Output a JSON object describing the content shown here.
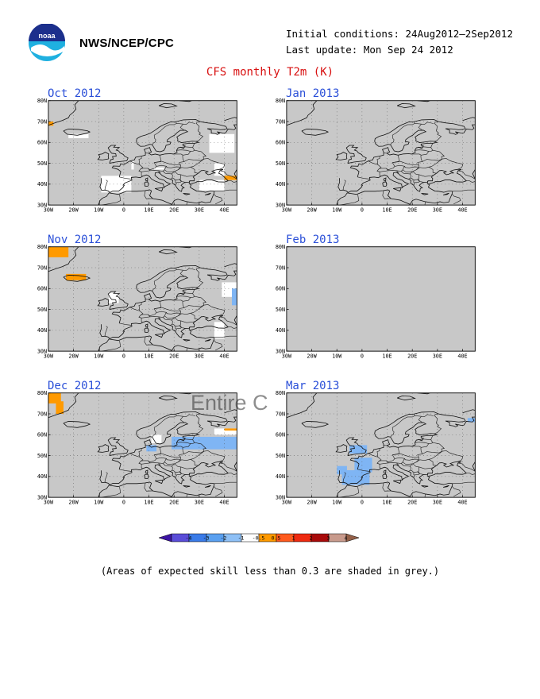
{
  "header": {
    "logo_text": "noaa",
    "agency": "NWS/NCEP/CPC",
    "initial_conditions": "Initial conditions: 24Aug2012—2Sep2012",
    "last_update": "Last update: Mon Sep 24 2012",
    "title": "CFS monthly T2m (K)"
  },
  "axes": {
    "lat_labels": [
      "80N",
      "70N",
      "60N",
      "50N",
      "40N",
      "30N"
    ],
    "lon_labels": [
      "30W",
      "20W",
      "10W",
      "0",
      "10E",
      "20E",
      "30E",
      "40E"
    ],
    "lat_range": [
      30,
      80
    ],
    "lon_range": [
      -30,
      45
    ]
  },
  "panels": [
    {
      "id": "oct",
      "title": "Oct 2012",
      "anomalies": [
        {
          "bin": "0.5..1",
          "lon": [
            -30,
            -28
          ],
          "lat": [
            68,
            70
          ]
        },
        {
          "bin": "-0.5..0.5",
          "lon": [
            -22,
            -14
          ],
          "lat": [
            62,
            64
          ]
        },
        {
          "bin": "-0.5..0.5",
          "lon": [
            -9,
            3
          ],
          "lat": [
            36,
            44
          ]
        },
        {
          "bin": "-0.5..0.5",
          "lon": [
            3,
            4
          ],
          "lat": [
            47,
            51
          ]
        },
        {
          "bin": "-0.5..0.5",
          "lon": [
            12,
            16
          ],
          "lat": [
            47,
            48
          ]
        },
        {
          "bin": "-0.5..0.5",
          "lon": [
            34,
            44
          ],
          "lat": [
            55,
            64
          ]
        },
        {
          "bin": "-0.5..0.5",
          "lon": [
            36,
            40
          ],
          "lat": [
            44,
            50
          ]
        },
        {
          "bin": "-0.5..0.5",
          "lon": [
            30,
            40
          ],
          "lat": [
            37,
            42
          ]
        },
        {
          "bin": "0.5..1",
          "lon": [
            40,
            45
          ],
          "lat": [
            42,
            44
          ]
        }
      ]
    },
    {
      "id": "jan",
      "title": "Jan 2013",
      "anomalies": []
    },
    {
      "id": "nov",
      "title": "Nov 2012",
      "anomalies": [
        {
          "bin": "0.5..1",
          "lon": [
            -30,
            -22
          ],
          "lat": [
            75,
            80
          ]
        },
        {
          "bin": "0.5..1",
          "lon": [
            -23,
            -15
          ],
          "lat": [
            64,
            67
          ]
        },
        {
          "bin": "-0.5..0.5",
          "lon": [
            -6,
            -2
          ],
          "lat": [
            53,
            58
          ]
        },
        {
          "bin": "-0.5..0.5",
          "lon": [
            36,
            40
          ],
          "lat": [
            36,
            44
          ]
        },
        {
          "bin": "-0.5..0.5",
          "lon": [
            39,
            45
          ],
          "lat": [
            56,
            63
          ]
        },
        {
          "bin": "-1..-0.5",
          "lon": [
            43,
            45
          ],
          "lat": [
            52,
            60
          ]
        }
      ]
    },
    {
      "id": "feb",
      "title": "Feb 2013",
      "no_map": true,
      "anomalies": []
    },
    {
      "id": "dec",
      "title": "Dec 2012",
      "anomalies": [
        {
          "bin": "0.5..1",
          "lon": [
            -30,
            -25
          ],
          "lat": [
            75,
            80
          ]
        },
        {
          "bin": "0.5..1",
          "lon": [
            -27,
            -24
          ],
          "lat": [
            70,
            76
          ]
        },
        {
          "bin": "-0.5..0.5",
          "lon": [
            11,
            15
          ],
          "lat": [
            56,
            60
          ]
        },
        {
          "bin": "-1..-0.5",
          "lon": [
            9,
            13
          ],
          "lat": [
            52,
            55
          ]
        },
        {
          "bin": "-1..-0.5",
          "lon": [
            19,
            45
          ],
          "lat": [
            53,
            59
          ]
        },
        {
          "bin": "-0.5..0.5",
          "lon": [
            36,
            45
          ],
          "lat": [
            60,
            63
          ]
        },
        {
          "bin": "0.5..1",
          "lon": [
            40,
            45
          ],
          "lat": [
            62,
            63
          ]
        }
      ]
    },
    {
      "id": "mar",
      "title": "Mar 2013",
      "anomalies": [
        {
          "bin": "-1..-0.5",
          "lon": [
            -10,
            -6
          ],
          "lat": [
            41,
            45
          ]
        },
        {
          "bin": "-1..-0.5",
          "lon": [
            -8,
            3
          ],
          "lat": [
            36,
            43
          ]
        },
        {
          "bin": "-1..-0.5",
          "lon": [
            -3,
            4
          ],
          "lat": [
            42,
            49
          ]
        },
        {
          "bin": "-1..-0.5",
          "lon": [
            -5,
            2
          ],
          "lat": [
            51,
            55
          ]
        },
        {
          "bin": "-1..-0.5",
          "lon": [
            42,
            45
          ],
          "lat": [
            66,
            68
          ]
        }
      ]
    }
  ],
  "colorbar": {
    "labels": [
      "-4",
      "-3",
      "-2",
      "-1",
      "-0.5",
      "0.5",
      "1",
      "2",
      "3",
      "4"
    ],
    "colors": [
      "#3c14a4",
      "#5a4dd8",
      "#3a7be8",
      "#5aa0f0",
      "#8ec0f6",
      "#ffffff",
      "#ff9a00",
      "#ff5a1e",
      "#ee2a10",
      "#a80a0a",
      "#c89a8c",
      "#946048"
    ]
  },
  "anomaly_colors": {
    "0.5..1": "#ff9a00",
    "-0.5..0.5": "#ffffff",
    "-1..-0.5": "#7fb5f4"
  },
  "mask_color": "#c8c8c8",
  "footnote": "(Areas of expected skill less than 0.3 are shaded in grey.)",
  "overlay_text": "Entire C"
}
